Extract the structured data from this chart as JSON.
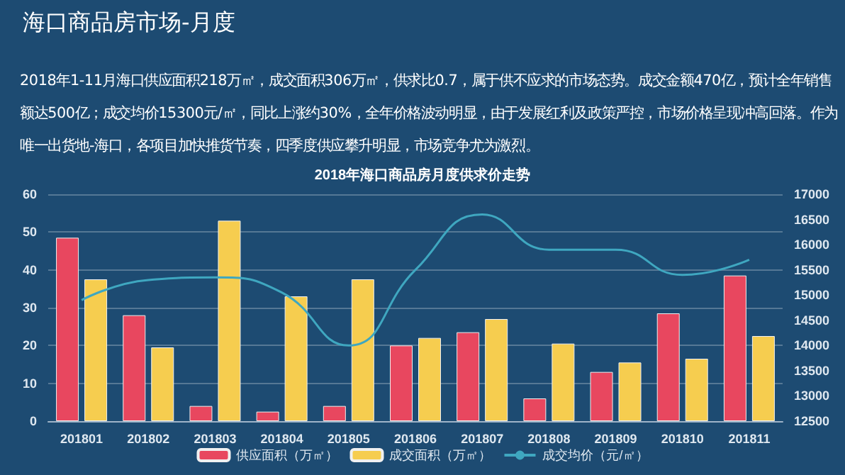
{
  "chart_data": {
    "type": "bar",
    "title": "海口商品房市场-月度",
    "subtitle": "2018年1-11月海口供应面积218万㎡，成交面积306万㎡，供求比0.7，属于供不应求的市场态势。成交金额470亿，预计全年销售额达500亿；成交均价15300元/㎡，同比上涨约30%，全年价格波动明显，由于发展红利及政策严控，市场价格呈现冲高回落。作为唯一出货地-海口，各项目加快推货节奏，四季度供应攀升明显，市场竞争尤为激烈。",
    "annotations": [
      "2018年海口商品房月度供求价走势"
    ],
    "categories": [
      "201801",
      "201802",
      "201803",
      "201804",
      "201805",
      "201806",
      "201807",
      "201808",
      "201809",
      "201810",
      "201811"
    ],
    "series": [
      {
        "name": "供应面积（万㎡）",
        "color": "#e8475f",
        "values": [
          48.5,
          28,
          4,
          2.5,
          4,
          20,
          23.5,
          6,
          13,
          28.5,
          38.5
        ]
      },
      {
        "name": "成交面积（万㎡）",
        "color": "#f6cd4f",
        "values": [
          37.5,
          19.5,
          53,
          33,
          37.5,
          22,
          27,
          20.5,
          15.5,
          16.5,
          22.5
        ]
      },
      {
        "name": "成交均价（元/㎡）",
        "type": "line",
        "axis": "y2",
        "color": "#3fa7c0",
        "values": [
          14900,
          15300,
          15350,
          15050,
          14000,
          15500,
          16600,
          15900,
          15900,
          15400,
          15700
        ]
      }
    ],
    "ylim": [
      0,
      60
    ],
    "yticks": [
      0,
      10,
      20,
      30,
      40,
      50,
      60
    ],
    "y2lim": [
      12500,
      17000
    ],
    "y2ticks": [
      12500,
      13000,
      13500,
      14000,
      14500,
      15000,
      15500,
      16000,
      16500,
      17000
    ],
    "grid": "y",
    "legend": "bottom",
    "marker": "none"
  }
}
